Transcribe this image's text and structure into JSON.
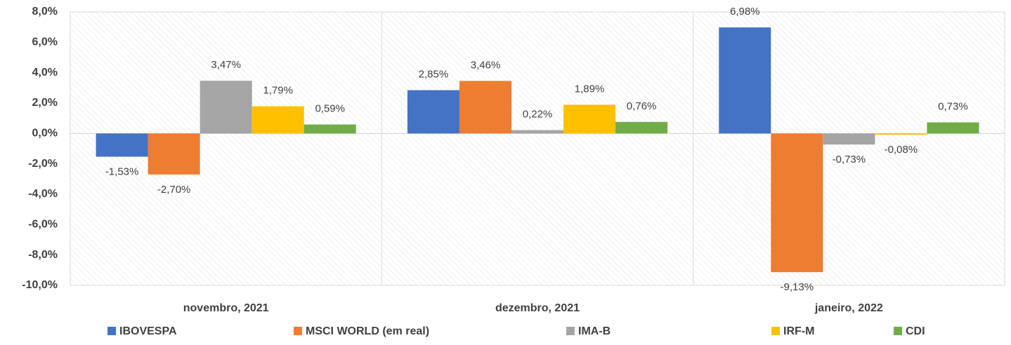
{
  "chart_data": {
    "type": "bar",
    "categories": [
      "novembro, 2021",
      "dezembro, 2021",
      "janeiro, 2022"
    ],
    "series": [
      {
        "name": "IBOVESPA",
        "color": "#4472c4",
        "values": [
          -1.53,
          2.85,
          6.98
        ],
        "value_labels": [
          "-1,53%",
          "2,85%",
          "6,98%"
        ]
      },
      {
        "name": "MSCI WORLD (em real)",
        "color": "#ed7d31",
        "values": [
          -2.7,
          3.46,
          -9.13
        ],
        "value_labels": [
          "-2,70%",
          "3,46%",
          "-9,13%"
        ]
      },
      {
        "name": "IMA-B",
        "color": "#a5a5a5",
        "values": [
          3.47,
          0.22,
          -0.73
        ],
        "value_labels": [
          "3,47%",
          "0,22%",
          "-0,73%"
        ]
      },
      {
        "name": "IRF-M",
        "color": "#ffc000",
        "values": [
          1.79,
          1.89,
          -0.08
        ],
        "value_labels": [
          "1,79%",
          "1,89%",
          "-0,08%"
        ]
      },
      {
        "name": "CDI",
        "color": "#70ad47",
        "values": [
          0.59,
          0.76,
          0.73
        ],
        "value_labels": [
          "0,59%",
          "0,76%",
          "0,73%"
        ]
      }
    ],
    "ylim": [
      -10,
      8
    ],
    "yticks": [
      {
        "value": -10,
        "label": "-10,0%"
      },
      {
        "value": -8,
        "label": "-8,0%"
      },
      {
        "value": -6,
        "label": "-6,0%"
      },
      {
        "value": -4,
        "label": "-4,0%"
      },
      {
        "value": -2,
        "label": "-2,0%"
      },
      {
        "value": 0,
        "label": "0,0%"
      },
      {
        "value": 2,
        "label": "2,0%"
      },
      {
        "value": 4,
        "label": "4,0%"
      },
      {
        "value": 6,
        "label": "6,0%"
      },
      {
        "value": 8,
        "label": "8,0%"
      }
    ],
    "grid": false,
    "legend": "bottom"
  }
}
